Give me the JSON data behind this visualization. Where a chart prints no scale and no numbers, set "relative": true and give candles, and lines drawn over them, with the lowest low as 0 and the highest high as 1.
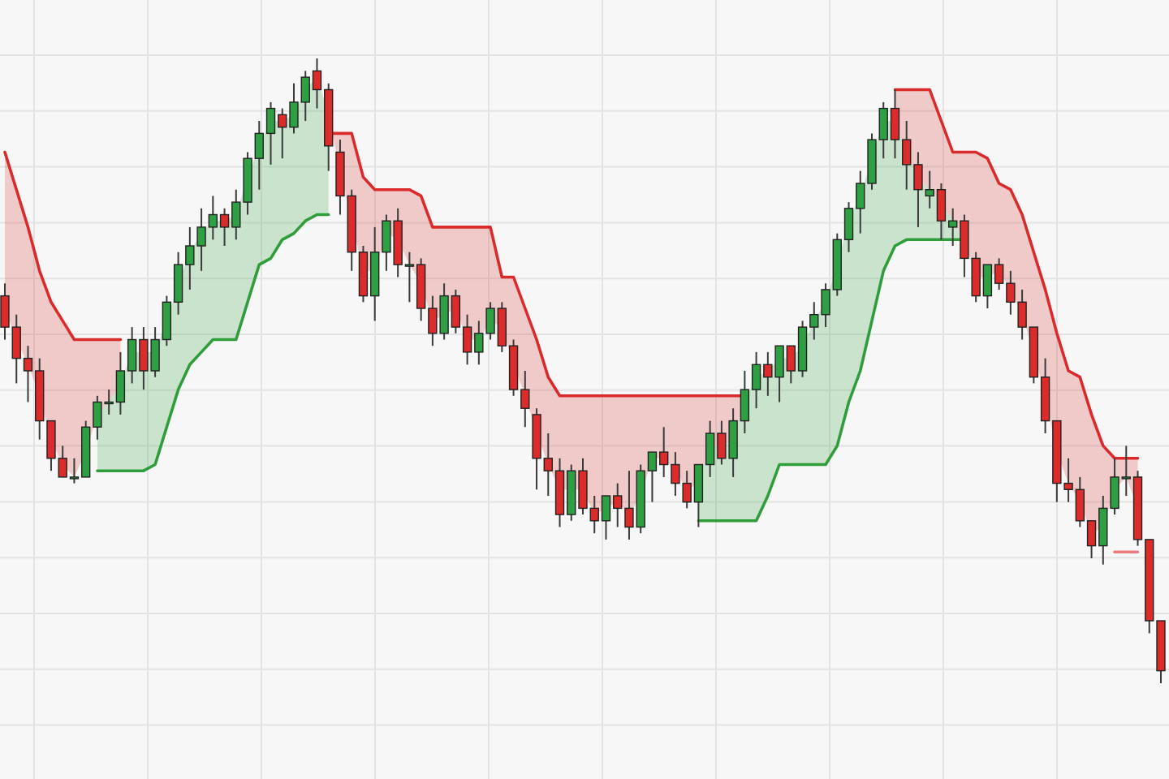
{
  "chart_data": {
    "type": "candlestick",
    "relative": true,
    "grid": true,
    "categories": [
      null,
      null,
      null,
      null,
      null,
      null,
      null,
      null,
      null,
      null,
      null,
      null,
      null,
      null,
      null,
      null,
      null,
      null,
      null,
      null,
      null,
      null,
      null,
      null,
      null,
      null,
      null,
      null,
      null,
      null,
      null,
      null,
      null,
      null,
      null,
      null,
      null,
      null,
      null,
      null,
      null,
      null,
      null,
      null,
      null,
      null,
      null,
      null,
      null,
      null,
      null,
      null,
      null,
      null,
      null,
      null,
      null,
      null,
      null,
      null,
      null,
      null,
      null,
      null,
      null,
      null,
      null,
      null,
      null,
      null,
      null,
      null,
      null,
      null,
      null,
      null,
      null,
      null,
      null,
      null,
      null,
      null,
      null,
      null,
      null,
      null,
      null,
      null,
      null,
      null,
      null,
      null,
      null,
      null,
      null,
      null,
      null,
      null,
      null,
      null,
      null
    ],
    "ohlc": [
      [
        0.62,
        0.64,
        0.55,
        0.57
      ],
      [
        0.57,
        0.59,
        0.48,
        0.52
      ],
      [
        0.52,
        0.54,
        0.45,
        0.5
      ],
      [
        0.5,
        0.52,
        0.39,
        0.42
      ],
      [
        0.42,
        0.42,
        0.34,
        0.36
      ],
      [
        0.36,
        0.38,
        0.33,
        0.33
      ],
      [
        0.33,
        0.36,
        0.32,
        0.33
      ],
      [
        0.33,
        0.42,
        0.33,
        0.41
      ],
      [
        0.41,
        0.46,
        0.39,
        0.45
      ],
      [
        0.45,
        0.47,
        0.43,
        0.45
      ],
      [
        0.45,
        0.53,
        0.43,
        0.5
      ],
      [
        0.5,
        0.57,
        0.48,
        0.55
      ],
      [
        0.55,
        0.57,
        0.47,
        0.5
      ],
      [
        0.5,
        0.57,
        0.49,
        0.55
      ],
      [
        0.55,
        0.62,
        0.54,
        0.61
      ],
      [
        0.61,
        0.69,
        0.59,
        0.67
      ],
      [
        0.67,
        0.73,
        0.63,
        0.7
      ],
      [
        0.7,
        0.76,
        0.66,
        0.73
      ],
      [
        0.73,
        0.78,
        0.71,
        0.75
      ],
      [
        0.75,
        0.76,
        0.7,
        0.73
      ],
      [
        0.73,
        0.79,
        0.71,
        0.77
      ],
      [
        0.77,
        0.85,
        0.75,
        0.84
      ],
      [
        0.84,
        0.9,
        0.79,
        0.88
      ],
      [
        0.88,
        0.93,
        0.83,
        0.92
      ],
      [
        0.91,
        0.92,
        0.84,
        0.89
      ],
      [
        0.89,
        0.96,
        0.88,
        0.93
      ],
      [
        0.93,
        0.98,
        0.9,
        0.97
      ],
      [
        0.98,
        1,
        0.92,
        0.95
      ],
      [
        0.95,
        0.96,
        0.82,
        0.86
      ],
      [
        0.85,
        0.87,
        0.75,
        0.78
      ],
      [
        0.78,
        0.79,
        0.66,
        0.69
      ],
      [
        0.69,
        0.7,
        0.61,
        0.62
      ],
      [
        0.62,
        0.73,
        0.58,
        0.69
      ],
      [
        0.69,
        0.75,
        0.66,
        0.74
      ],
      [
        0.74,
        0.76,
        0.65,
        0.67
      ],
      [
        0.67,
        0.69,
        0.61,
        0.67
      ],
      [
        0.67,
        0.68,
        0.58,
        0.6
      ],
      [
        0.6,
        0.62,
        0.54,
        0.56
      ],
      [
        0.56,
        0.64,
        0.55,
        0.62
      ],
      [
        0.62,
        0.63,
        0.56,
        0.57
      ],
      [
        0.57,
        0.59,
        0.51,
        0.53
      ],
      [
        0.53,
        0.58,
        0.51,
        0.56
      ],
      [
        0.56,
        0.61,
        0.55,
        0.6
      ],
      [
        0.6,
        0.61,
        0.53,
        0.54
      ],
      [
        0.54,
        0.55,
        0.46,
        0.47
      ],
      [
        0.47,
        0.5,
        0.41,
        0.44
      ],
      [
        0.43,
        0.44,
        0.31,
        0.36
      ],
      [
        0.36,
        0.4,
        0.3,
        0.34
      ],
      [
        0.34,
        0.36,
        0.25,
        0.27
      ],
      [
        0.27,
        0.35,
        0.26,
        0.34
      ],
      [
        0.34,
        0.36,
        0.27,
        0.28
      ],
      [
        0.28,
        0.3,
        0.24,
        0.26
      ],
      [
        0.26,
        0.3,
        0.23,
        0.3
      ],
      [
        0.3,
        0.32,
        0.25,
        0.28
      ],
      [
        0.28,
        0.34,
        0.23,
        0.25
      ],
      [
        0.25,
        0.35,
        0.24,
        0.34
      ],
      [
        0.34,
        0.37,
        0.29,
        0.37
      ],
      [
        0.37,
        0.41,
        0.33,
        0.35
      ],
      [
        0.35,
        0.37,
        0.3,
        0.32
      ],
      [
        0.32,
        0.34,
        0.28,
        0.29
      ],
      [
        0.29,
        0.35,
        0.25,
        0.35
      ],
      [
        0.35,
        0.42,
        0.33,
        0.4
      ],
      [
        0.4,
        0.42,
        0.35,
        0.36
      ],
      [
        0.36,
        0.44,
        0.33,
        0.42
      ],
      [
        0.42,
        0.5,
        0.4,
        0.47
      ],
      [
        0.47,
        0.53,
        0.44,
        0.51
      ],
      [
        0.51,
        0.53,
        0.46,
        0.49
      ],
      [
        0.49,
        0.54,
        0.45,
        0.54
      ],
      [
        0.54,
        0.54,
        0.48,
        0.5
      ],
      [
        0.5,
        0.58,
        0.49,
        0.57
      ],
      [
        0.57,
        0.61,
        0.55,
        0.59
      ],
      [
        0.59,
        0.64,
        0.57,
        0.63
      ],
      [
        0.63,
        0.72,
        0.62,
        0.71
      ],
      [
        0.71,
        0.77,
        0.69,
        0.76
      ],
      [
        0.76,
        0.82,
        0.72,
        0.8
      ],
      [
        0.8,
        0.88,
        0.79,
        0.87
      ],
      [
        0.87,
        0.93,
        0.84,
        0.92
      ],
      [
        0.92,
        0.95,
        0.84,
        0.87
      ],
      [
        0.87,
        0.9,
        0.79,
        0.83
      ],
      [
        0.83,
        0.85,
        0.73,
        0.79
      ],
      [
        0.78,
        0.82,
        0.76,
        0.79
      ],
      [
        0.79,
        0.8,
        0.71,
        0.74
      ],
      [
        0.73,
        0.76,
        0.7,
        0.74
      ],
      [
        0.74,
        0.75,
        0.65,
        0.68
      ],
      [
        0.68,
        0.69,
        0.61,
        0.62
      ],
      [
        0.62,
        0.67,
        0.6,
        0.67
      ],
      [
        0.67,
        0.68,
        0.63,
        0.64
      ],
      [
        0.64,
        0.66,
        0.59,
        0.61
      ],
      [
        0.61,
        0.63,
        0.55,
        0.57
      ],
      [
        0.57,
        0.57,
        0.48,
        0.49
      ],
      [
        0.49,
        0.52,
        0.4,
        0.42
      ],
      [
        0.42,
        0.42,
        0.29,
        0.32
      ],
      [
        0.32,
        0.36,
        0.29,
        0.31
      ],
      [
        0.31,
        0.33,
        0.25,
        0.26
      ],
      [
        0.26,
        0.26,
        0.2,
        0.22
      ],
      [
        0.22,
        0.3,
        0.19,
        0.28
      ],
      [
        0.28,
        0.36,
        0.27,
        0.33
      ],
      [
        0.33,
        0.38,
        0.3,
        0.33
      ],
      [
        0.33,
        0.34,
        0.22,
        0.23
      ],
      [
        0.23,
        0.23,
        0.08,
        0.1
      ],
      [
        0.1,
        0.1,
        0,
        0.02
      ]
    ],
    "series": [
      {
        "type": "line",
        "color": "#d92b2b",
        "values": [
          0.85,
          0.79,
          0.73,
          0.66,
          0.61,
          0.58,
          0.55,
          0.55,
          0.55,
          0.55,
          0.55,
          null,
          null,
          null,
          null,
          null,
          null,
          null,
          null,
          null,
          null,
          null,
          null,
          null,
          null,
          null,
          null,
          null,
          0.88,
          0.88,
          0.88,
          0.81,
          0.79,
          0.79,
          0.79,
          0.79,
          0.78,
          0.73,
          0.73,
          0.73,
          0.73,
          0.73,
          0.73,
          0.65,
          0.65,
          0.6,
          0.55,
          0.49,
          0.46,
          0.46,
          0.46,
          0.46,
          0.46,
          0.46,
          0.46,
          0.46,
          0.46,
          0.46,
          0.46,
          0.46,
          0.46,
          0.46,
          0.46,
          0.46,
          0.46,
          null,
          null,
          null,
          null,
          null,
          null,
          null,
          null,
          null,
          null,
          null,
          null,
          0.95,
          0.95,
          0.95,
          0.95,
          0.9,
          0.85,
          0.85,
          0.85,
          0.84,
          0.8,
          0.79,
          0.75,
          0.69,
          0.63,
          0.56,
          0.5,
          0.49,
          0.43,
          0.38,
          0.36,
          0.36,
          0.36,
          null,
          null
        ],
        "lower": [
          0.6,
          0.55,
          0.51,
          0.46,
          0.39,
          0.35,
          0.33,
          0.37,
          0.43,
          0.45,
          0.48,
          null,
          null,
          null,
          null,
          null,
          null,
          null,
          null,
          null,
          null,
          null,
          null,
          null,
          null,
          null,
          null,
          null,
          0.91,
          0.82,
          0.74,
          0.66,
          0.66,
          0.72,
          0.71,
          0.67,
          0.64,
          0.58,
          0.59,
          0.6,
          0.55,
          0.55,
          0.58,
          0.57,
          0.51,
          0.46,
          0.4,
          0.35,
          0.31,
          0.31,
          0.31,
          0.27,
          0.28,
          0.29,
          0.27,
          0.3,
          0.36,
          0.36,
          0.34,
          0.31,
          0.32,
          0.38,
          0.38,
          0.39,
          0.45,
          null,
          null,
          null,
          null,
          null,
          null,
          null,
          null,
          null,
          null,
          null,
          null,
          0.9,
          0.85,
          0.81,
          0.79,
          0.77,
          0.74,
          0.71,
          0.65,
          0.65,
          0.66,
          0.63,
          0.59,
          0.53,
          0.46,
          0.37,
          0.32,
          0.29,
          0.24,
          0.25,
          0.31,
          0.33,
          0.28,
          null,
          null
        ],
        "upper": [
          0.85,
          0.79,
          0.73,
          0.66,
          0.61,
          0.58,
          0.55,
          0.55,
          0.55,
          0.55,
          0.55,
          null,
          null,
          null,
          null,
          null,
          null,
          null,
          null,
          null,
          null,
          null,
          null,
          null,
          null,
          null,
          null,
          null,
          0.88,
          0.88,
          0.88,
          0.81,
          0.79,
          0.79,
          0.79,
          0.79,
          0.78,
          0.73,
          0.73,
          0.73,
          0.73,
          0.73,
          0.73,
          0.65,
          0.65,
          0.6,
          0.55,
          0.49,
          0.46,
          0.46,
          0.46,
          0.46,
          0.46,
          0.46,
          0.46,
          0.46,
          0.46,
          0.46,
          0.46,
          0.46,
          0.46,
          0.46,
          0.46,
          0.46,
          0.46,
          null,
          null,
          null,
          null,
          null,
          null,
          null,
          null,
          null,
          null,
          null,
          null,
          0.95,
          0.95,
          0.95,
          0.95,
          0.9,
          0.85,
          0.85,
          0.85,
          0.84,
          0.8,
          0.79,
          0.75,
          0.69,
          0.63,
          0.56,
          0.5,
          0.49,
          0.43,
          0.38,
          0.36,
          0.36,
          0.36,
          null,
          null
        ]
      },
      {
        "type": "line",
        "color": "#2f9e3a",
        "values": [
          null,
          null,
          null,
          null,
          null,
          null,
          null,
          null,
          0.34,
          0.34,
          0.34,
          0.34,
          0.34,
          0.35,
          0.41,
          0.47,
          0.51,
          0.53,
          0.55,
          0.55,
          0.55,
          0.61,
          0.67,
          0.68,
          0.71,
          0.72,
          0.74,
          0.75,
          0.75,
          null,
          null,
          null,
          null,
          null,
          null,
          null,
          null,
          null,
          null,
          null,
          null,
          null,
          null,
          null,
          null,
          null,
          null,
          null,
          null,
          null,
          null,
          null,
          null,
          null,
          null,
          null,
          null,
          null,
          null,
          null,
          0.26,
          0.26,
          0.26,
          0.26,
          0.26,
          0.26,
          0.3,
          0.35,
          0.35,
          0.35,
          0.35,
          0.35,
          0.38,
          0.45,
          0.5,
          0.58,
          0.66,
          0.7,
          0.71,
          0.71,
          0.71,
          0.71,
          0.71,
          0.71,
          null,
          null,
          null,
          null,
          null,
          null,
          null,
          null,
          null,
          null,
          null,
          null,
          null,
          null,
          null,
          null,
          null
        ],
        "lower": [
          null,
          null,
          null,
          null,
          null,
          null,
          null,
          null,
          0.34,
          0.34,
          0.34,
          0.34,
          0.34,
          0.35,
          0.41,
          0.47,
          0.51,
          0.53,
          0.55,
          0.55,
          0.55,
          0.61,
          0.67,
          0.68,
          0.71,
          0.72,
          0.74,
          0.75,
          0.75,
          null,
          null,
          null,
          null,
          null,
          null,
          null,
          null,
          null,
          null,
          null,
          null,
          null,
          null,
          null,
          null,
          null,
          null,
          null,
          null,
          null,
          null,
          null,
          null,
          null,
          null,
          null,
          null,
          null,
          null,
          null,
          0.26,
          0.26,
          0.26,
          0.26,
          0.26,
          0.26,
          0.3,
          0.35,
          0.35,
          0.35,
          0.35,
          0.35,
          0.38,
          0.45,
          0.5,
          0.58,
          0.66,
          0.7,
          0.71,
          0.71,
          0.71,
          0.71,
          0.71,
          0.71,
          null,
          null,
          null,
          null,
          null,
          null,
          null,
          null,
          null,
          null,
          null,
          null,
          null,
          null,
          null,
          null,
          null
        ],
        "upper": [
          null,
          null,
          null,
          null,
          null,
          null,
          null,
          null,
          0.43,
          0.45,
          0.48,
          0.53,
          0.53,
          0.53,
          0.58,
          0.64,
          0.69,
          0.72,
          0.74,
          0.74,
          0.75,
          0.81,
          0.86,
          0.9,
          0.9,
          0.91,
          0.95,
          0.97,
          0.91,
          null,
          null,
          null,
          null,
          null,
          null,
          null,
          null,
          null,
          null,
          null,
          null,
          null,
          null,
          null,
          null,
          null,
          null,
          null,
          null,
          null,
          null,
          null,
          null,
          null,
          null,
          null,
          null,
          null,
          null,
          null,
          0.32,
          0.38,
          0.38,
          0.39,
          0.45,
          0.49,
          0.5,
          0.52,
          0.52,
          0.54,
          0.58,
          0.61,
          0.67,
          0.74,
          0.78,
          0.84,
          0.9,
          0.9,
          0.85,
          0.81,
          0.79,
          0.77,
          0.74,
          0.71,
          null,
          null,
          null,
          null,
          null,
          null,
          null,
          null,
          null,
          null,
          null,
          null,
          null,
          null,
          null,
          null,
          null
        ]
      },
      {
        "type": "line",
        "color": "#ec7a82",
        "values": [
          null,
          null,
          null,
          null,
          null,
          null,
          null,
          null,
          null,
          null,
          null,
          null,
          null,
          null,
          null,
          null,
          null,
          null,
          null,
          null,
          null,
          null,
          null,
          null,
          null,
          null,
          null,
          null,
          null,
          null,
          null,
          null,
          null,
          null,
          null,
          null,
          null,
          null,
          null,
          null,
          null,
          null,
          null,
          null,
          null,
          null,
          null,
          null,
          null,
          null,
          null,
          null,
          null,
          null,
          null,
          null,
          null,
          null,
          null,
          null,
          null,
          null,
          null,
          null,
          null,
          null,
          null,
          null,
          null,
          null,
          null,
          null,
          null,
          null,
          null,
          null,
          null,
          null,
          null,
          null,
          null,
          null,
          null,
          null,
          null,
          null,
          null,
          null,
          null,
          null,
          null,
          null,
          null,
          null,
          null,
          null,
          0.21,
          0.21,
          0.21,
          null,
          null
        ]
      }
    ]
  }
}
